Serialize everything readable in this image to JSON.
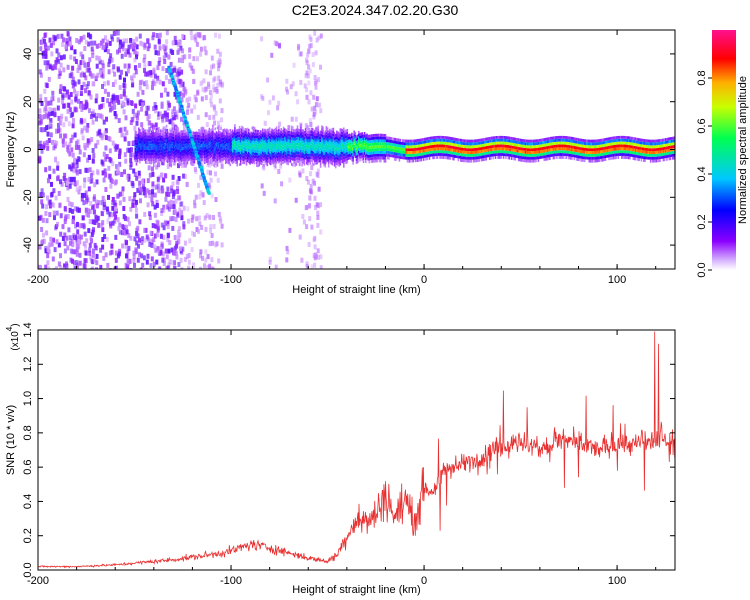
{
  "title": "C2E3.2024.347.02.20.G30",
  "chart_data": [
    {
      "type": "heatmap",
      "name": "spectrogram",
      "xlabel": "Height of straight line (km)",
      "ylabel": "Frequency (Hz)",
      "xlim": [
        -200,
        130
      ],
      "ylim": [
        -50,
        50
      ],
      "xticks": [
        -200,
        -100,
        0,
        100
      ],
      "yticks": [
        -40,
        -20,
        0,
        20,
        40
      ],
      "colorbar": {
        "label": "Normalized spectral amplitude",
        "range": [
          0.0,
          1.0
        ],
        "ticks": [
          "0.0",
          "0.2",
          "0.4",
          "0.6",
          "0.8"
        ],
        "colors": [
          "#ffffff",
          "#a000ff",
          "#0000ff",
          "#00c8ff",
          "#00ff64",
          "#c8ff00",
          "#ffb000",
          "#ff0000",
          "#ff0080"
        ]
      },
      "features": [
        {
          "label": "chirp",
          "x": [
            -133,
            -112
          ],
          "y": [
            35,
            -18
          ]
        },
        {
          "label": "carrier",
          "x": [
            -150,
            130
          ],
          "y": [
            2,
            0
          ]
        }
      ]
    },
    {
      "type": "line",
      "name": "snr",
      "xlabel": "Height of straight line (km)",
      "ylabel": "SNR (10 * v/v)",
      "multiplier": "(x10",
      "multiplier_exp": "4",
      "multiplier_close": ")",
      "xlim": [
        -200,
        130
      ],
      "ylim": [
        0.0,
        1.4
      ],
      "xticks": [
        -200,
        -100,
        0,
        100
      ],
      "yticks": [
        "0.0",
        "0.2",
        "0.4",
        "0.6",
        "0.8",
        "1.0",
        "1.2",
        "1.4"
      ],
      "color": "#e83030",
      "series": [
        {
          "name": "SNR",
          "x": [
            -200,
            -180,
            -160,
            -150,
            -130,
            -110,
            -100,
            -90,
            -80,
            -70,
            -60,
            -50,
            -45,
            -40,
            -35,
            -30,
            -25,
            -20,
            -15,
            -10,
            -5,
            0,
            5,
            10,
            20,
            30,
            40,
            50,
            60,
            70,
            80,
            90,
            100,
            110,
            120,
            125,
            130
          ],
          "y": [
            0.02,
            0.02,
            0.03,
            0.04,
            0.06,
            0.09,
            0.11,
            0.15,
            0.13,
            0.1,
            0.07,
            0.05,
            0.09,
            0.2,
            0.3,
            0.28,
            0.32,
            0.45,
            0.3,
            0.42,
            0.28,
            0.48,
            0.45,
            0.58,
            0.62,
            0.66,
            0.72,
            0.75,
            0.7,
            0.76,
            0.74,
            0.7,
            0.74,
            0.73,
            0.76,
            0.78,
            0.72
          ]
        }
      ]
    }
  ]
}
